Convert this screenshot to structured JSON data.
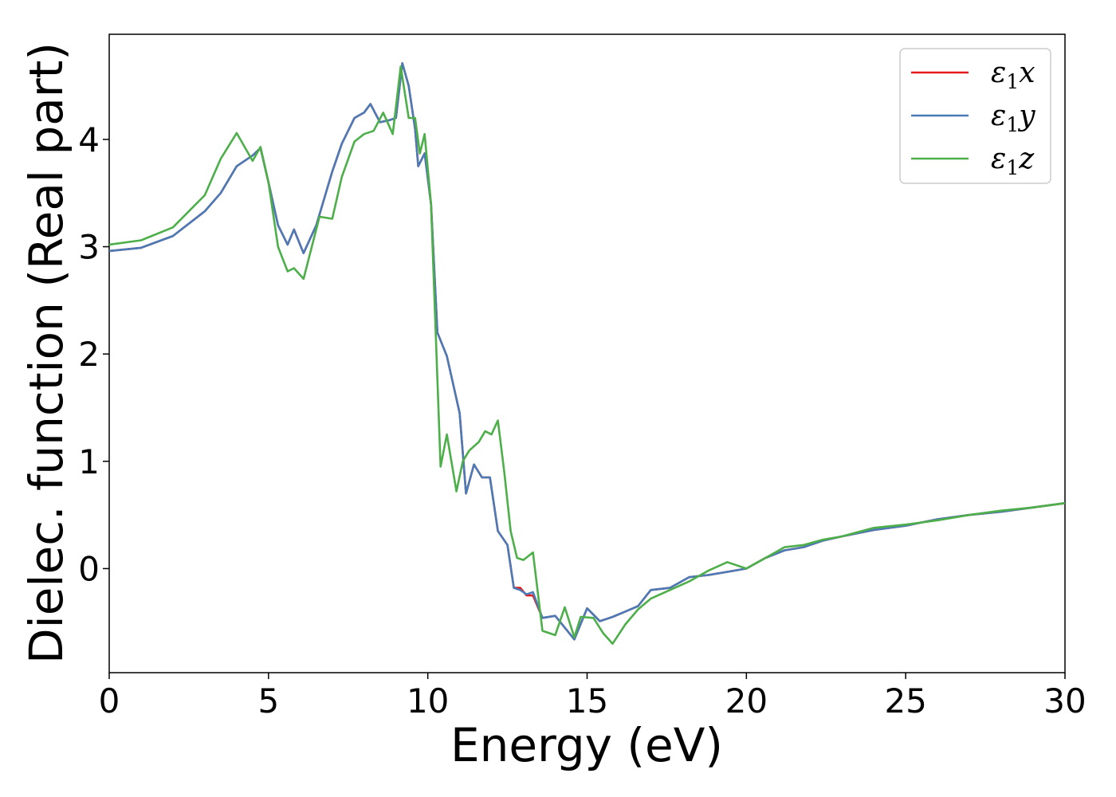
{
  "chart_data": {
    "type": "line",
    "title": "",
    "xlabel": "Energy (eV)",
    "ylabel": "Dielec. function (Real part)",
    "xlim": [
      0,
      30
    ],
    "ylim": [
      -0.97,
      4.98
    ],
    "xticks": [
      0,
      5,
      10,
      15,
      20,
      25,
      30
    ],
    "yticks": [
      0,
      1,
      2,
      3,
      4
    ],
    "grid": false,
    "legend_position": "top-right",
    "series": [
      {
        "name": "ε1x",
        "legend_base": "ε",
        "legend_sub": "1",
        "legend_axis": "x",
        "color": "#e41a1c",
        "points": [
          [
            0,
            2.96
          ],
          [
            1,
            2.99
          ],
          [
            2,
            3.1
          ],
          [
            3,
            3.33
          ],
          [
            3.5,
            3.5
          ],
          [
            4,
            3.75
          ],
          [
            4.5,
            3.85
          ],
          [
            4.75,
            3.92
          ],
          [
            5,
            3.6
          ],
          [
            5.3,
            3.2
          ],
          [
            5.6,
            3.02
          ],
          [
            5.8,
            3.16
          ],
          [
            6.1,
            2.94
          ],
          [
            6.5,
            3.2
          ],
          [
            7,
            3.7
          ],
          [
            7.3,
            3.96
          ],
          [
            7.7,
            4.2
          ],
          [
            8,
            4.25
          ],
          [
            8.2,
            4.33
          ],
          [
            8.5,
            4.16
          ],
          [
            8.8,
            4.18
          ],
          [
            9.0,
            4.2
          ],
          [
            9.2,
            4.71
          ],
          [
            9.4,
            4.5
          ],
          [
            9.6,
            4.1
          ],
          [
            9.7,
            3.75
          ],
          [
            9.9,
            3.87
          ],
          [
            10.1,
            3.4
          ],
          [
            10.3,
            2.2
          ],
          [
            10.6,
            1.98
          ],
          [
            11,
            1.45
          ],
          [
            11.2,
            0.7
          ],
          [
            11.45,
            0.97
          ],
          [
            11.7,
            0.85
          ],
          [
            11.95,
            0.85
          ],
          [
            12.2,
            0.35
          ],
          [
            12.5,
            0.22
          ],
          [
            12.7,
            -0.18
          ],
          [
            12.9,
            -0.18
          ],
          [
            13.1,
            -0.25
          ],
          [
            13.3,
            -0.25
          ],
          [
            13.6,
            -0.46
          ],
          [
            14,
            -0.44
          ],
          [
            14.6,
            -0.66
          ],
          [
            15,
            -0.37
          ],
          [
            15.4,
            -0.49
          ],
          [
            15.8,
            -0.45
          ],
          [
            16.2,
            -0.4
          ],
          [
            16.6,
            -0.35
          ],
          [
            17,
            -0.2
          ],
          [
            17.6,
            -0.18
          ],
          [
            18.2,
            -0.08
          ],
          [
            18.8,
            -0.06
          ],
          [
            19.4,
            -0.03
          ],
          [
            20,
            0
          ],
          [
            20.6,
            0.1
          ],
          [
            21.2,
            0.17
          ],
          [
            21.8,
            0.2
          ],
          [
            22.4,
            0.26
          ],
          [
            23,
            0.3
          ],
          [
            24,
            0.36
          ],
          [
            25,
            0.4
          ],
          [
            26,
            0.46
          ],
          [
            27,
            0.5
          ],
          [
            28,
            0.53
          ],
          [
            29,
            0.57
          ],
          [
            30,
            0.61
          ]
        ]
      },
      {
        "name": "ε1y",
        "legend_base": "ε",
        "legend_sub": "1",
        "legend_axis": "y",
        "color": "#4a7bb7",
        "points": [
          [
            0,
            2.96
          ],
          [
            1,
            2.99
          ],
          [
            2,
            3.1
          ],
          [
            3,
            3.33
          ],
          [
            3.5,
            3.5
          ],
          [
            4,
            3.75
          ],
          [
            4.5,
            3.85
          ],
          [
            4.75,
            3.92
          ],
          [
            5,
            3.6
          ],
          [
            5.3,
            3.2
          ],
          [
            5.6,
            3.02
          ],
          [
            5.8,
            3.16
          ],
          [
            6.1,
            2.94
          ],
          [
            6.5,
            3.2
          ],
          [
            7,
            3.7
          ],
          [
            7.3,
            3.96
          ],
          [
            7.7,
            4.2
          ],
          [
            8,
            4.25
          ],
          [
            8.2,
            4.33
          ],
          [
            8.5,
            4.16
          ],
          [
            8.8,
            4.18
          ],
          [
            9.0,
            4.2
          ],
          [
            9.2,
            4.71
          ],
          [
            9.4,
            4.5
          ],
          [
            9.6,
            4.1
          ],
          [
            9.7,
            3.75
          ],
          [
            9.9,
            3.87
          ],
          [
            10.1,
            3.4
          ],
          [
            10.3,
            2.2
          ],
          [
            10.6,
            1.98
          ],
          [
            11,
            1.45
          ],
          [
            11.2,
            0.7
          ],
          [
            11.45,
            0.97
          ],
          [
            11.7,
            0.85
          ],
          [
            11.95,
            0.85
          ],
          [
            12.2,
            0.35
          ],
          [
            12.5,
            0.22
          ],
          [
            12.7,
            -0.18
          ],
          [
            12.9,
            -0.2
          ],
          [
            13.1,
            -0.24
          ],
          [
            13.3,
            -0.22
          ],
          [
            13.6,
            -0.46
          ],
          [
            14,
            -0.44
          ],
          [
            14.6,
            -0.66
          ],
          [
            15,
            -0.37
          ],
          [
            15.4,
            -0.49
          ],
          [
            15.8,
            -0.45
          ],
          [
            16.2,
            -0.4
          ],
          [
            16.6,
            -0.35
          ],
          [
            17,
            -0.2
          ],
          [
            17.6,
            -0.18
          ],
          [
            18.2,
            -0.08
          ],
          [
            18.8,
            -0.06
          ],
          [
            19.4,
            -0.03
          ],
          [
            20,
            0
          ],
          [
            20.6,
            0.1
          ],
          [
            21.2,
            0.17
          ],
          [
            21.8,
            0.2
          ],
          [
            22.4,
            0.26
          ],
          [
            23,
            0.3
          ],
          [
            24,
            0.36
          ],
          [
            25,
            0.4
          ],
          [
            26,
            0.46
          ],
          [
            27,
            0.5
          ],
          [
            28,
            0.53
          ],
          [
            29,
            0.57
          ],
          [
            30,
            0.61
          ]
        ]
      },
      {
        "name": "ε1z",
        "legend_base": "ε",
        "legend_sub": "1",
        "legend_axis": "z",
        "color": "#4daf4a",
        "points": [
          [
            0,
            3.02
          ],
          [
            1,
            3.06
          ],
          [
            2,
            3.18
          ],
          [
            3,
            3.48
          ],
          [
            3.5,
            3.82
          ],
          [
            4,
            4.06
          ],
          [
            4.5,
            3.8
          ],
          [
            4.75,
            3.93
          ],
          [
            5,
            3.6
          ],
          [
            5.3,
            3.0
          ],
          [
            5.6,
            2.77
          ],
          [
            5.8,
            2.8
          ],
          [
            6.1,
            2.7
          ],
          [
            6.6,
            3.28
          ],
          [
            7,
            3.26
          ],
          [
            7.3,
            3.65
          ],
          [
            7.7,
            3.98
          ],
          [
            8,
            4.05
          ],
          [
            8.3,
            4.08
          ],
          [
            8.6,
            4.25
          ],
          [
            8.9,
            4.05
          ],
          [
            9.15,
            4.68
          ],
          [
            9.4,
            4.2
          ],
          [
            9.6,
            4.2
          ],
          [
            9.75,
            3.87
          ],
          [
            9.9,
            4.05
          ],
          [
            10.1,
            3.4
          ],
          [
            10.4,
            0.95
          ],
          [
            10.6,
            1.25
          ],
          [
            10.9,
            0.72
          ],
          [
            11.1,
            1.0
          ],
          [
            11.3,
            1.1
          ],
          [
            11.6,
            1.18
          ],
          [
            11.8,
            1.28
          ],
          [
            12.0,
            1.25
          ],
          [
            12.2,
            1.38
          ],
          [
            12.4,
            0.9
          ],
          [
            12.6,
            0.35
          ],
          [
            12.8,
            0.1
          ],
          [
            13.0,
            0.08
          ],
          [
            13.3,
            0.15
          ],
          [
            13.6,
            -0.58
          ],
          [
            14,
            -0.62
          ],
          [
            14.3,
            -0.36
          ],
          [
            14.6,
            -0.64
          ],
          [
            14.8,
            -0.45
          ],
          [
            15.2,
            -0.46
          ],
          [
            15.5,
            -0.6
          ],
          [
            15.8,
            -0.7
          ],
          [
            16.2,
            -0.52
          ],
          [
            16.6,
            -0.38
          ],
          [
            17,
            -0.28
          ],
          [
            17.6,
            -0.2
          ],
          [
            18.2,
            -0.12
          ],
          [
            18.8,
            -0.02
          ],
          [
            19.4,
            0.06
          ],
          [
            20,
            0.0
          ],
          [
            20.6,
            0.1
          ],
          [
            21.2,
            0.2
          ],
          [
            21.8,
            0.22
          ],
          [
            22.4,
            0.27
          ],
          [
            23,
            0.3
          ],
          [
            24,
            0.38
          ],
          [
            25,
            0.41
          ],
          [
            26,
            0.45
          ],
          [
            27,
            0.5
          ],
          [
            28,
            0.54
          ],
          [
            29,
            0.57
          ],
          [
            30,
            0.61
          ]
        ]
      }
    ]
  }
}
